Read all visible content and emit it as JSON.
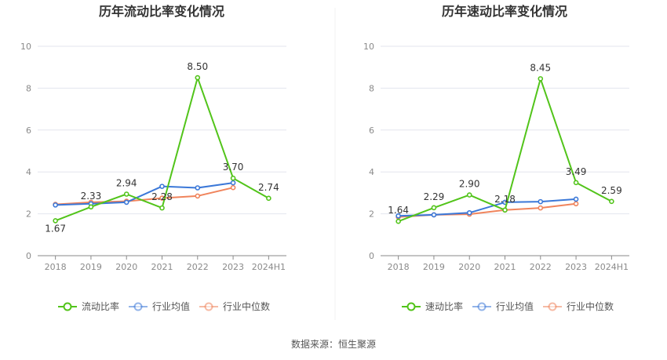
{
  "source_text": "数据来源：恒生聚源",
  "colors": {
    "green": "#52c41a",
    "blue": "#3b78d8",
    "orange": "#f0845c",
    "grid": "#e3e6ee",
    "axis": "#8a8a8a"
  },
  "chart_data": [
    {
      "type": "line",
      "title": "历年流动比率变化情况",
      "categories": [
        "2018",
        "2019",
        "2020",
        "2021",
        "2022",
        "2023",
        "2024H1"
      ],
      "ylim": [
        0,
        10
      ],
      "yticks": [
        "0",
        "2",
        "4",
        "6",
        "8",
        "10"
      ],
      "grid": true,
      "legend_position": "bottom",
      "series": [
        {
          "name": "流动比率",
          "color": "green",
          "values": [
            1.67,
            2.33,
            2.94,
            2.28,
            8.5,
            3.7,
            2.74
          ],
          "labels": [
            "1.67",
            "2.33",
            "2.94",
            "2.28",
            "8.50",
            "3.70",
            "2.74"
          ]
        },
        {
          "name": "行业均值",
          "color": "blue",
          "values": [
            2.42,
            2.48,
            2.55,
            3.31,
            3.24,
            3.48,
            null
          ]
        },
        {
          "name": "行业中位数",
          "color": "orange",
          "values": [
            2.45,
            2.55,
            2.6,
            2.75,
            2.85,
            3.25,
            null
          ]
        }
      ]
    },
    {
      "type": "line",
      "title": "历年速动比率变化情况",
      "categories": [
        "2018",
        "2019",
        "2020",
        "2021",
        "2022",
        "2023",
        "2024H1"
      ],
      "ylim": [
        0,
        10
      ],
      "yticks": [
        "0",
        "2",
        "4",
        "6",
        "8",
        "10"
      ],
      "grid": true,
      "legend_position": "bottom",
      "series": [
        {
          "name": "速动比率",
          "color": "green",
          "values": [
            1.64,
            2.29,
            2.9,
            2.18,
            8.45,
            3.49,
            2.59
          ],
          "labels": [
            "1.64",
            "2.29",
            "2.90",
            "2.18",
            "8.45",
            "3.49",
            "2.59"
          ]
        },
        {
          "name": "行业均值",
          "color": "blue",
          "values": [
            1.9,
            1.95,
            2.05,
            2.55,
            2.58,
            2.7,
            null
          ]
        },
        {
          "name": "行业中位数",
          "color": "orange",
          "values": [
            1.85,
            1.95,
            1.98,
            2.18,
            2.28,
            2.48,
            null
          ]
        }
      ]
    }
  ]
}
